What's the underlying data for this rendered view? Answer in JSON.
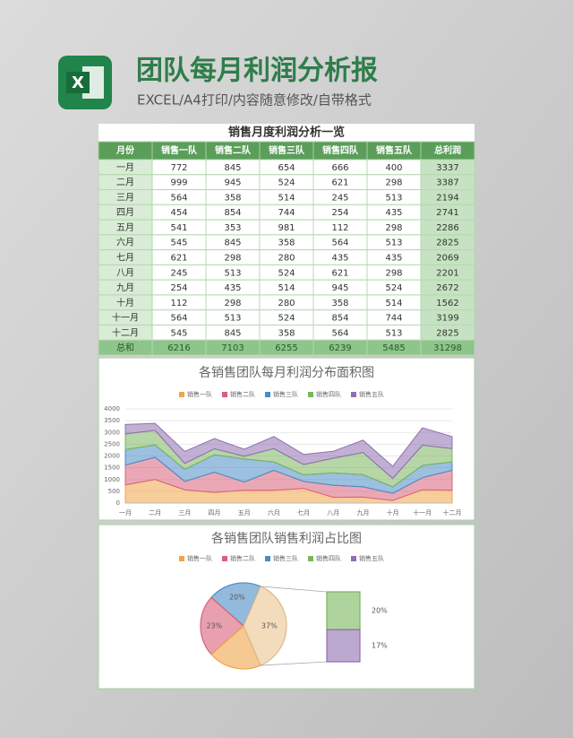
{
  "header": {
    "icon": "X",
    "title": "团队每月利润分析报",
    "subtitle": "EXCEL/A4打印/内容随意修改/自带格式"
  },
  "table": {
    "title": "销售月度利润分析一览",
    "columns": [
      "月份",
      "销售一队",
      "销售二队",
      "销售三队",
      "销售四队",
      "销售五队",
      "总利润"
    ],
    "rows": [
      [
        "一月",
        772,
        845,
        654,
        666,
        400,
        3337
      ],
      [
        "二月",
        999,
        945,
        524,
        621,
        298,
        3387
      ],
      [
        "三月",
        564,
        358,
        514,
        245,
        513,
        2194
      ],
      [
        "四月",
        454,
        854,
        744,
        254,
        435,
        2741
      ],
      [
        "五月",
        541,
        353,
        981,
        112,
        298,
        2286
      ],
      [
        "六月",
        545,
        845,
        358,
        564,
        513,
        2825
      ],
      [
        "七月",
        621,
        298,
        280,
        435,
        435,
        2069
      ],
      [
        "八月",
        245,
        513,
        524,
        621,
        298,
        2201
      ],
      [
        "九月",
        254,
        435,
        514,
        945,
        524,
        2672
      ],
      [
        "十月",
        112,
        298,
        280,
        358,
        514,
        1562
      ],
      [
        "十一月",
        564,
        513,
        524,
        854,
        744,
        3199
      ],
      [
        "十二月",
        545,
        845,
        358,
        564,
        513,
        2825
      ],
      [
        "总和",
        6216,
        7103,
        6255,
        6239,
        5485,
        31298
      ]
    ]
  },
  "chart_data": [
    {
      "type": "area",
      "stacked": true,
      "title": "各销售团队每月利润分布面积图",
      "legend": "top",
      "grid": true,
      "categories": [
        "一月",
        "二月",
        "三月",
        "四月",
        "五月",
        "六月",
        "七月",
        "八月",
        "九月",
        "十月",
        "十一月",
        "十二月"
      ],
      "series": [
        {
          "name": "销售一队",
          "color": "#f0a449",
          "values": [
            772,
            999,
            564,
            454,
            541,
            545,
            621,
            245,
            254,
            112,
            564,
            545
          ]
        },
        {
          "name": "销售二队",
          "color": "#d9607a",
          "values": [
            845,
            945,
            358,
            854,
            353,
            845,
            298,
            513,
            435,
            298,
            513,
            845
          ]
        },
        {
          "name": "销售三队",
          "color": "#4a8cc4",
          "values": [
            654,
            524,
            514,
            744,
            981,
            358,
            280,
            524,
            514,
            280,
            524,
            358
          ]
        },
        {
          "name": "销售四队",
          "color": "#7ab55c",
          "values": [
            666,
            621,
            245,
            254,
            112,
            564,
            435,
            621,
            945,
            358,
            854,
            564
          ]
        },
        {
          "name": "销售五队",
          "color": "#8f6fb0",
          "values": [
            400,
            298,
            513,
            435,
            298,
            513,
            435,
            298,
            524,
            514,
            744,
            513
          ]
        }
      ],
      "ylim": [
        0,
        4000
      ],
      "yticks": [
        0,
        500,
        1000,
        1500,
        2000,
        2500,
        3000,
        3500,
        4000
      ]
    },
    {
      "type": "pie",
      "subtype": "bar-of-pie",
      "title": "各销售团队销售利润占比图",
      "legend": "top",
      "categories": [
        "销售一队",
        "销售二队",
        "销售三队",
        "销售四队",
        "销售五队"
      ],
      "colors": [
        "#f0a449",
        "#d9607a",
        "#4a8cc4",
        "#7ab55c",
        "#8f6fb0"
      ],
      "values": [
        20,
        23,
        20,
        20,
        17
      ],
      "value_labels": [
        null,
        "23%",
        "20%",
        "20%",
        "17%"
      ],
      "secondary_count": 2,
      "other": {
        "value": 37,
        "label": "37%"
      }
    }
  ]
}
